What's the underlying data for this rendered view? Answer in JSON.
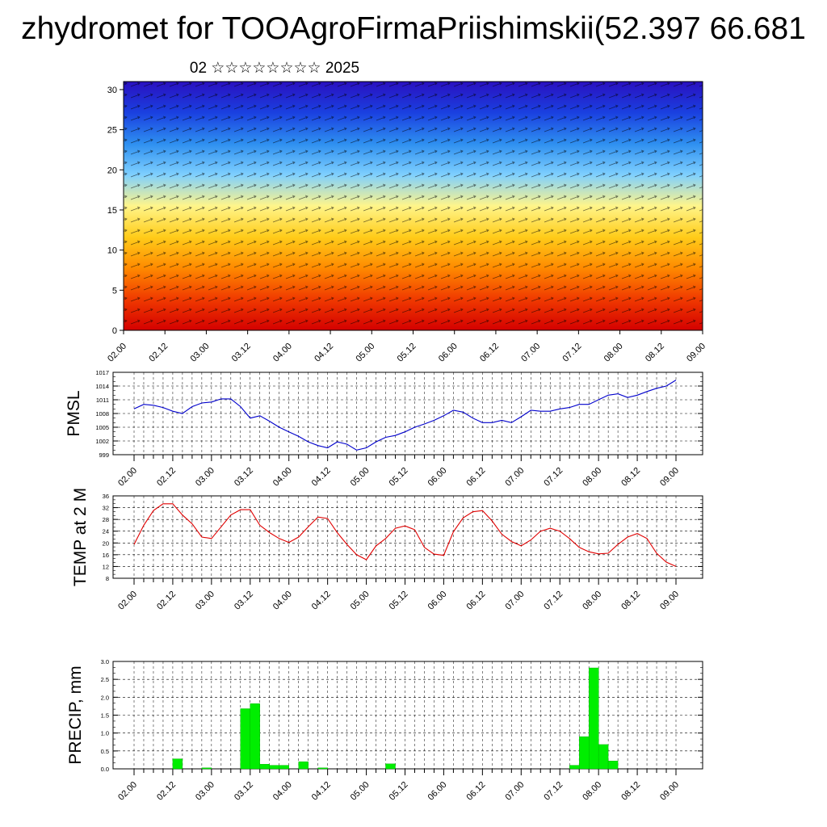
{
  "title": "zhydromet for TOOAgroFirmaPriishimskii(52.397 66.681",
  "subtitle": "02 ☆☆☆☆☆☆☆☆ 2025",
  "x_ticks": [
    "02.00",
    "02.12",
    "03.00",
    "03.12",
    "04.00",
    "04.12",
    "05.00",
    "05.12",
    "06.00",
    "06.12",
    "07.00",
    "07.12",
    "08.00",
    "08.12",
    "09.00"
  ],
  "colors": {
    "pmsl_line": "#0000cc",
    "temp_line": "#e00000",
    "precip_bar": "#00ee00"
  },
  "chart_data": [
    {
      "type": "heatmap",
      "title": "",
      "description_overlay": "wind vectors",
      "y_ticks": [
        "0",
        "5",
        "10",
        "15",
        "20",
        "25",
        "30"
      ],
      "ylim": [
        0,
        31
      ],
      "x_ticks": [
        "02.00",
        "02.12",
        "03.00",
        "03.12",
        "04.00",
        "04.12",
        "05.00",
        "05.12",
        "06.00",
        "06.12",
        "07.00",
        "07.12",
        "08.00",
        "08.12",
        "09.00"
      ],
      "color_scale": [
        "#d40000",
        "#f03a00",
        "#ff8a00",
        "#ffcc1a",
        "#fff58a",
        "#7fd0ff",
        "#2e8ff0",
        "#1a40e0",
        "#2a10c0"
      ]
    },
    {
      "type": "line",
      "ylabel": "PMSL",
      "ylim": [
        999,
        1017
      ],
      "y_ticks": [
        "999",
        "1002",
        "1005",
        "1008",
        "1011",
        "1014",
        "1017"
      ],
      "grid": true,
      "x": [
        "02.00",
        "02.03",
        "02.06",
        "02.09",
        "02.12",
        "02.15",
        "02.18",
        "02.21",
        "03.00",
        "03.03",
        "03.06",
        "03.09",
        "03.12",
        "03.15",
        "03.18",
        "03.21",
        "04.00",
        "04.03",
        "04.06",
        "04.09",
        "04.12",
        "04.15",
        "04.18",
        "04.21",
        "05.00",
        "05.03",
        "05.06",
        "05.09",
        "05.12",
        "05.15",
        "05.18",
        "05.21",
        "06.00",
        "06.03",
        "06.06",
        "06.09",
        "06.12",
        "06.15",
        "06.18",
        "06.21",
        "07.00",
        "07.03",
        "07.06",
        "07.09",
        "07.12",
        "07.15",
        "07.18",
        "07.21",
        "08.00",
        "08.03",
        "08.06",
        "08.09",
        "08.12",
        "08.15",
        "08.18",
        "08.21",
        "09.00"
      ],
      "series": [
        {
          "values": [
            1009.0,
            1010.0,
            1009.8,
            1009.3,
            1008.5,
            1008.0,
            1009.5,
            1010.3,
            1010.5,
            1011.2,
            1011.2,
            1009.5,
            1007.0,
            1007.5,
            1006.3,
            1005.0,
            1004.0,
            1003.0,
            1001.8,
            1001.0,
            1000.5,
            1001.8,
            1001.3,
            1000.0,
            1000.5,
            1001.8,
            1002.8,
            1003.2,
            1004.0,
            1005.0,
            1005.7,
            1006.5,
            1007.5,
            1008.7,
            1008.3,
            1007.0,
            1006.0,
            1006.0,
            1006.5,
            1006.0,
            1007.3,
            1008.7,
            1008.5,
            1008.5,
            1009.0,
            1009.3,
            1010.0,
            1010.0,
            1011.0,
            1012.0,
            1012.3,
            1011.5,
            1012.0,
            1012.8,
            1013.5,
            1014.0,
            1015.3
          ]
        }
      ]
    },
    {
      "type": "line",
      "ylabel": "TEMP at 2 M",
      "ylim": [
        8,
        36
      ],
      "y_ticks": [
        "8",
        "12",
        "16",
        "20",
        "24",
        "28",
        "32",
        "36"
      ],
      "grid": true,
      "x": [
        "02.00",
        "02.03",
        "02.06",
        "02.09",
        "02.12",
        "02.15",
        "02.18",
        "02.21",
        "03.00",
        "03.03",
        "03.06",
        "03.09",
        "03.12",
        "03.15",
        "03.18",
        "03.21",
        "04.00",
        "04.03",
        "04.06",
        "04.09",
        "04.12",
        "04.15",
        "04.18",
        "04.21",
        "05.00",
        "05.03",
        "05.06",
        "05.09",
        "05.12",
        "05.15",
        "05.18",
        "05.21",
        "06.00",
        "06.03",
        "06.06",
        "06.09",
        "06.12",
        "06.15",
        "06.18",
        "06.21",
        "07.00",
        "07.03",
        "07.06",
        "07.09",
        "07.12",
        "07.15",
        "07.18",
        "07.21",
        "08.00",
        "08.03",
        "08.06",
        "08.09",
        "08.12",
        "08.15",
        "08.18",
        "08.21",
        "09.00"
      ],
      "series": [
        {
          "values": [
            19.5,
            26.0,
            31.0,
            33.3,
            33.3,
            29.5,
            26.5,
            22.0,
            21.5,
            25.5,
            29.5,
            31.3,
            31.3,
            26.0,
            23.5,
            21.5,
            20.2,
            22.0,
            25.5,
            28.8,
            28.3,
            23.5,
            19.5,
            16.0,
            14.3,
            19.0,
            21.5,
            25.0,
            25.8,
            24.5,
            18.5,
            16.2,
            15.8,
            23.8,
            28.5,
            30.6,
            31.0,
            27.5,
            23.0,
            20.5,
            19.0,
            21.0,
            24.0,
            25.0,
            24.0,
            21.5,
            18.5,
            17.0,
            16.3,
            16.5,
            19.5,
            22.0,
            23.2,
            21.5,
            16.5,
            13.5,
            12.0
          ]
        }
      ]
    },
    {
      "type": "bar",
      "ylabel": "PRECIP, mm",
      "ylim": [
        0,
        3
      ],
      "y_ticks": [
        "0.0",
        "0.5",
        "1.0",
        "1.5",
        "2.0",
        "2.5",
        "3.0"
      ],
      "grid": true,
      "x": [
        "02.03",
        "02.06",
        "02.09",
        "02.12",
        "02.15",
        "02.18",
        "02.21",
        "03.00",
        "03.03",
        "03.06",
        "03.09",
        "03.12",
        "03.15",
        "03.18",
        "03.21",
        "04.00",
        "04.03",
        "04.06",
        "04.09",
        "04.12",
        "04.15",
        "04.18",
        "04.21",
        "05.00",
        "05.03",
        "05.06",
        "05.09",
        "05.12",
        "05.15",
        "05.18",
        "05.21",
        "06.00",
        "06.03",
        "06.06",
        "06.09",
        "06.12",
        "06.15",
        "06.18",
        "06.21",
        "07.00",
        "07.03",
        "07.06",
        "07.09",
        "07.12",
        "07.15",
        "07.18",
        "07.21",
        "08.00",
        "08.03",
        "08.06",
        "08.09",
        "08.12",
        "08.15",
        "08.18",
        "08.21",
        "09.00"
      ],
      "values": [
        0,
        0,
        0,
        0,
        0.28,
        0,
        0,
        0.03,
        0,
        0,
        0,
        1.68,
        1.82,
        0.13,
        0.1,
        0.1,
        0,
        0.2,
        0,
        0.03,
        0,
        0,
        0,
        0,
        0,
        0,
        0.14,
        0,
        0,
        0,
        0,
        0,
        0,
        0,
        0,
        0,
        0,
        0,
        0,
        0,
        0,
        0,
        0,
        0,
        0,
        0.1,
        0.9,
        2.82,
        0.68,
        0.22,
        0,
        0,
        0,
        0,
        0,
        0
      ]
    }
  ]
}
